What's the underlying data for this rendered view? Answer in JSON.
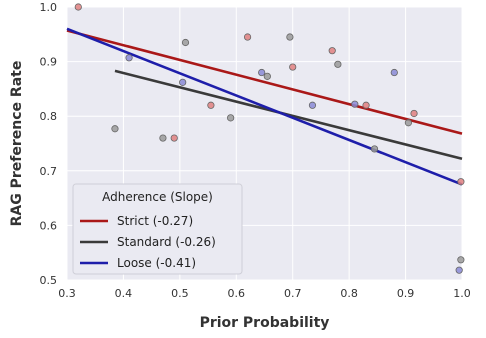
{
  "chart_data": {
    "type": "scatter",
    "title": "",
    "xlabel": "Prior Probability",
    "ylabel": "RAG Preference Rate",
    "xlim": [
      0.3,
      1.0
    ],
    "ylim": [
      0.5,
      1.0
    ],
    "xticks": [
      "0.3",
      "0.4",
      "0.5",
      "0.6",
      "0.7",
      "0.8",
      "0.9",
      "1.0"
    ],
    "yticks": [
      "0.5",
      "0.6",
      "0.7",
      "0.8",
      "0.9",
      "1.0"
    ],
    "grid": true,
    "background": "#eaeaf2",
    "legend": {
      "title": "Adherence (Slope)",
      "placement": "lower-left",
      "entries": [
        "Strict (-0.27)",
        "Standard (-0.26)",
        "Loose (-0.41)"
      ]
    },
    "series": [
      {
        "name": "Strict (-0.27)",
        "color": "#aa1818",
        "marker_color": "#e08080",
        "points": [
          [
            0.32,
            1.0
          ],
          [
            0.49,
            0.76
          ],
          [
            0.555,
            0.82
          ],
          [
            0.62,
            0.945
          ],
          [
            0.7,
            0.89
          ],
          [
            0.77,
            0.92
          ],
          [
            0.83,
            0.82
          ],
          [
            0.915,
            0.805
          ],
          [
            0.998,
            0.68
          ]
        ],
        "fit": [
          [
            0.3,
            0.957
          ],
          [
            1.0,
            0.768
          ]
        ]
      },
      {
        "name": "Standard (-0.26)",
        "color": "#3a3a3a",
        "marker_color": "#9a9a9a",
        "points": [
          [
            0.385,
            0.777
          ],
          [
            0.47,
            0.76
          ],
          [
            0.51,
            0.935
          ],
          [
            0.59,
            0.797
          ],
          [
            0.655,
            0.873
          ],
          [
            0.695,
            0.945
          ],
          [
            0.78,
            0.895
          ],
          [
            0.845,
            0.74
          ],
          [
            0.905,
            0.788
          ],
          [
            0.998,
            0.537
          ]
        ],
        "fit": [
          [
            0.385,
            0.883
          ],
          [
            1.0,
            0.722
          ]
        ]
      },
      {
        "name": "Loose (-0.41)",
        "color": "#1e1eaa",
        "marker_color": "#8a8ad6",
        "points": [
          [
            0.41,
            0.907
          ],
          [
            0.505,
            0.862
          ],
          [
            0.645,
            0.88
          ],
          [
            0.735,
            0.82
          ],
          [
            0.81,
            0.822
          ],
          [
            0.88,
            0.88
          ],
          [
            0.995,
            0.518
          ]
        ],
        "fit": [
          [
            0.3,
            0.96
          ],
          [
            1.0,
            0.675
          ]
        ]
      }
    ]
  }
}
